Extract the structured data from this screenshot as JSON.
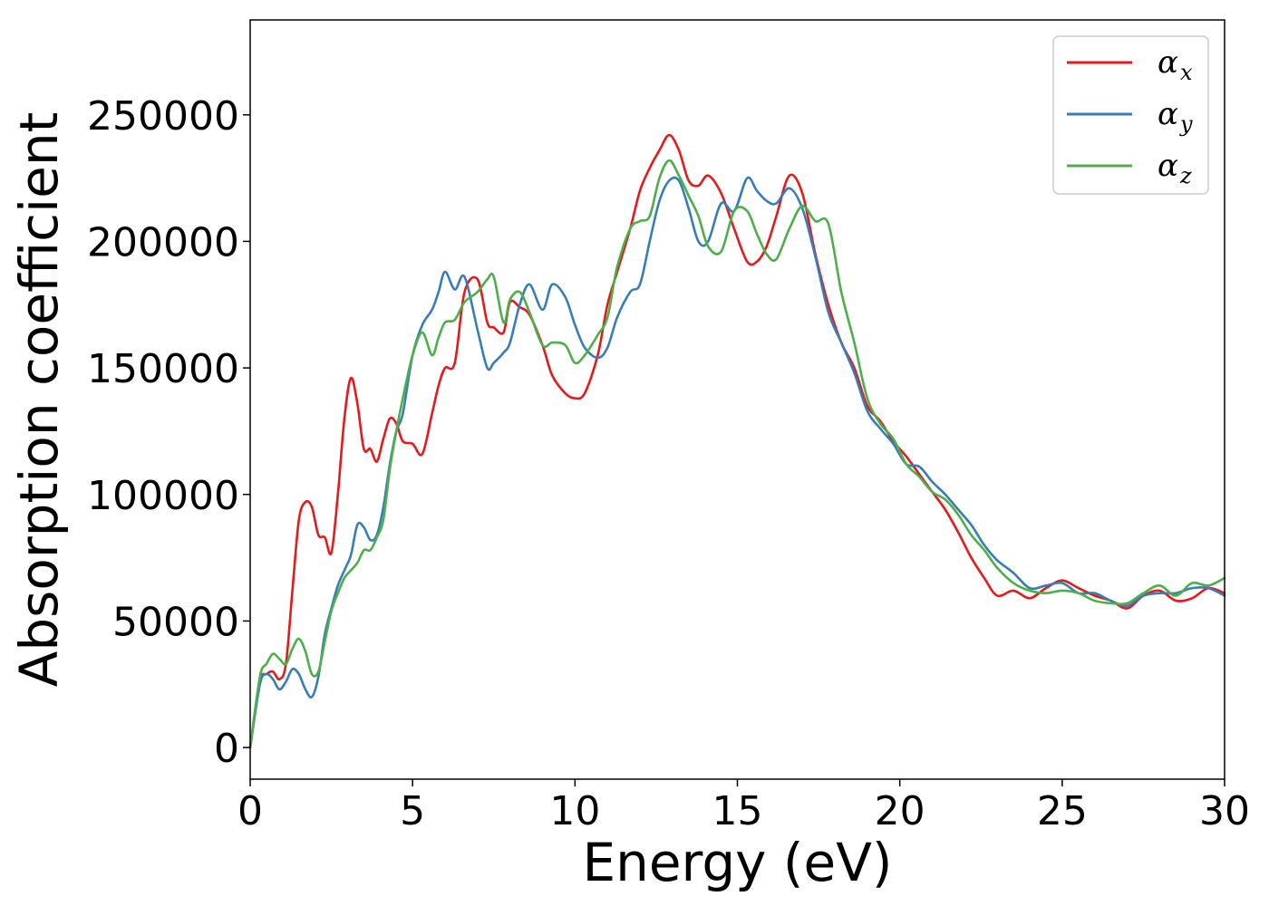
{
  "chart_data": {
    "type": "line",
    "xlabel": "Energy (eV)",
    "ylabel": "Absorption coefficient",
    "xlim": [
      0,
      30
    ],
    "ylim": [
      -12500,
      287500
    ],
    "xticks": [
      0,
      5,
      10,
      15,
      20,
      25,
      30
    ],
    "yticks": [
      0,
      50000,
      100000,
      150000,
      200000,
      250000
    ],
    "grid": false,
    "legend_position": "top-right",
    "series": [
      {
        "name": "α_x",
        "label_base": "α",
        "label_sub": "x",
        "color": "#e41a1c",
        "x": [
          0,
          0.3,
          0.5,
          0.7,
          0.9,
          1.1,
          1.3,
          1.5,
          1.7,
          1.9,
          2.1,
          2.3,
          2.5,
          2.7,
          2.9,
          3.1,
          3.3,
          3.5,
          3.7,
          3.9,
          4.1,
          4.3,
          4.5,
          4.7,
          5.0,
          5.3,
          5.6,
          5.8,
          6.0,
          6.3,
          6.6,
          7.0,
          7.3,
          7.5,
          7.8,
          8.0,
          8.3,
          8.6,
          9.0,
          9.3,
          9.7,
          10.0,
          10.3,
          10.7,
          11.0,
          11.3,
          11.7,
          12.0,
          12.3,
          12.6,
          12.9,
          13.2,
          13.5,
          13.8,
          14.1,
          14.5,
          14.9,
          15.3,
          15.6,
          15.9,
          16.2,
          16.6,
          17.0,
          17.4,
          17.8,
          18.2,
          18.6,
          19.0,
          19.4,
          19.8,
          20.2,
          20.6,
          21.0,
          21.4,
          21.8,
          22.2,
          22.6,
          23.0,
          23.5,
          24.0,
          24.5,
          25.0,
          25.5,
          26.0,
          26.5,
          27.0,
          27.5,
          28.0,
          28.5,
          29.0,
          29.5,
          30.0
        ],
        "y": [
          0,
          26000,
          29000,
          30000,
          27000,
          33000,
          62000,
          90000,
          97000,
          95000,
          84000,
          83000,
          77000,
          100000,
          130000,
          146000,
          136000,
          118000,
          118000,
          113000,
          122000,
          130000,
          128000,
          121000,
          120000,
          116000,
          132000,
          143000,
          150000,
          152000,
          180000,
          185000,
          168000,
          166000,
          164000,
          176000,
          174000,
          171000,
          159000,
          147000,
          140000,
          138000,
          140000,
          155000,
          175000,
          188000,
          205000,
          220000,
          229000,
          236000,
          242000,
          236000,
          224000,
          222000,
          226000,
          219000,
          205000,
          192000,
          192000,
          198000,
          210000,
          226000,
          219000,
          195000,
          175000,
          160000,
          150000,
          135000,
          129000,
          121000,
          115000,
          108000,
          101000,
          94000,
          85000,
          75000,
          67000,
          60000,
          62000,
          59000,
          63000,
          66000,
          63000,
          60000,
          58000,
          55000,
          60000,
          62000,
          58000,
          59000,
          63000,
          61000
        ]
      },
      {
        "name": "α_y",
        "label_base": "α",
        "label_sub": "y",
        "color": "#377eb8",
        "x": [
          0,
          0.3,
          0.5,
          0.7,
          0.9,
          1.1,
          1.3,
          1.5,
          1.7,
          1.9,
          2.1,
          2.3,
          2.5,
          2.7,
          2.9,
          3.1,
          3.3,
          3.5,
          3.7,
          3.9,
          4.1,
          4.3,
          4.5,
          4.7,
          5.0,
          5.3,
          5.6,
          5.8,
          6.0,
          6.3,
          6.6,
          7.0,
          7.3,
          7.5,
          7.8,
          8.0,
          8.3,
          8.6,
          9.0,
          9.3,
          9.7,
          10.0,
          10.3,
          10.7,
          11.0,
          11.3,
          11.7,
          12.0,
          12.3,
          12.6,
          12.9,
          13.2,
          13.5,
          13.8,
          14.1,
          14.5,
          14.9,
          15.3,
          15.6,
          15.9,
          16.2,
          16.6,
          17.0,
          17.4,
          17.8,
          18.2,
          18.6,
          19.0,
          19.4,
          19.8,
          20.2,
          20.6,
          21.0,
          21.4,
          21.8,
          22.2,
          22.6,
          23.0,
          23.5,
          24.0,
          24.5,
          25.0,
          25.5,
          26.0,
          26.5,
          27.0,
          27.5,
          28.0,
          28.5,
          29.0,
          29.5,
          30.0
        ],
        "y": [
          0,
          25000,
          29000,
          27000,
          23000,
          26000,
          31000,
          29000,
          23000,
          20000,
          28000,
          45000,
          55000,
          64000,
          70000,
          76000,
          88000,
          87000,
          82000,
          84000,
          95000,
          112000,
          125000,
          132000,
          155000,
          167000,
          173000,
          180000,
          188000,
          181000,
          186000,
          165000,
          150000,
          152000,
          156000,
          160000,
          175000,
          183000,
          173000,
          183000,
          178000,
          167000,
          158000,
          154000,
          158000,
          170000,
          180000,
          183000,
          200000,
          216000,
          224000,
          224000,
          213000,
          200000,
          200000,
          215000,
          212000,
          225000,
          220000,
          216000,
          215000,
          221000,
          213000,
          194000,
          172000,
          160000,
          148000,
          133000,
          126000,
          120000,
          112000,
          111000,
          105000,
          100000,
          94000,
          88000,
          80000,
          74000,
          69000,
          63000,
          64000,
          65000,
          61000,
          61000,
          58000,
          56000,
          60000,
          61000,
          61000,
          63000,
          63000,
          60000
        ]
      },
      {
        "name": "α_z",
        "label_base": "α",
        "label_sub": "z",
        "color": "#4daf4a",
        "x": [
          0,
          0.3,
          0.5,
          0.7,
          0.9,
          1.1,
          1.3,
          1.5,
          1.7,
          1.9,
          2.1,
          2.3,
          2.5,
          2.7,
          2.9,
          3.1,
          3.3,
          3.5,
          3.7,
          3.9,
          4.1,
          4.3,
          4.5,
          4.7,
          5.0,
          5.3,
          5.6,
          5.8,
          6.0,
          6.3,
          6.6,
          7.0,
          7.3,
          7.5,
          7.8,
          8.0,
          8.3,
          8.6,
          9.0,
          9.3,
          9.7,
          10.0,
          10.3,
          10.7,
          11.0,
          11.3,
          11.7,
          12.0,
          12.3,
          12.6,
          12.9,
          13.2,
          13.5,
          13.8,
          14.1,
          14.5,
          14.9,
          15.3,
          15.6,
          15.9,
          16.2,
          16.6,
          17.0,
          17.4,
          17.8,
          18.2,
          18.6,
          19.0,
          19.4,
          19.8,
          20.2,
          20.6,
          21.0,
          21.4,
          21.8,
          22.2,
          22.6,
          23.0,
          23.5,
          24.0,
          24.5,
          25.0,
          25.5,
          26.0,
          26.5,
          27.0,
          27.5,
          28.0,
          28.5,
          29.0,
          29.5,
          30.0
        ],
        "y": [
          0,
          28000,
          33000,
          37000,
          35000,
          33000,
          39000,
          43000,
          38000,
          29000,
          30000,
          42000,
          54000,
          61000,
          67000,
          70000,
          73000,
          78000,
          78000,
          83000,
          90000,
          110000,
          125000,
          138000,
          155000,
          164000,
          155000,
          162000,
          168000,
          169000,
          176000,
          180000,
          185000,
          186000,
          168000,
          177000,
          180000,
          172000,
          159000,
          160000,
          159000,
          152000,
          155000,
          163000,
          170000,
          190000,
          205000,
          208000,
          210000,
          225000,
          232000,
          226000,
          218000,
          210000,
          198000,
          196000,
          212000,
          212000,
          203000,
          195000,
          193000,
          205000,
          214000,
          208000,
          207000,
          180000,
          160000,
          138000,
          128000,
          122000,
          112000,
          107000,
          101000,
          98000,
          92000,
          84000,
          78000,
          71000,
          65000,
          62000,
          61000,
          62000,
          61000,
          58000,
          57000,
          57000,
          61000,
          64000,
          60000,
          65000,
          64000,
          67000
        ]
      }
    ]
  }
}
